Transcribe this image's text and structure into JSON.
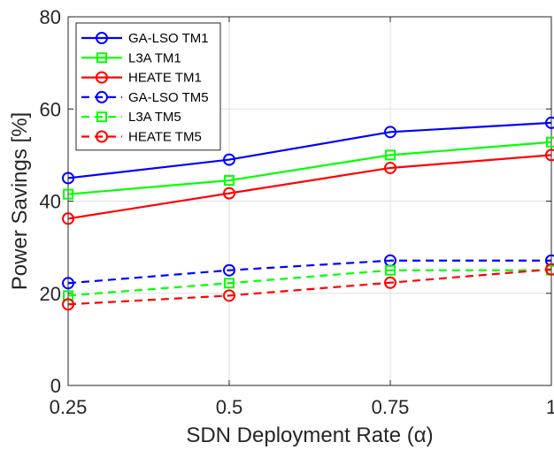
{
  "chart_data": {
    "type": "line",
    "xlabel": "SDN Deployment Rate (α)",
    "ylabel": "Power Savings [%]",
    "x": [
      0.25,
      0.5,
      0.75,
      1
    ],
    "x_tick_labels": [
      "0.25",
      "0.5",
      "0.75",
      "1"
    ],
    "y_ticks": [
      0,
      20,
      40,
      60,
      80
    ],
    "xlim": [
      0.25,
      1
    ],
    "ylim": [
      0,
      80
    ],
    "grid": true,
    "legend_position": "top-left",
    "series": [
      {
        "name": "GA-LSO TM1",
        "values": [
          45,
          49,
          55,
          57
        ],
        "color": "#0000ff",
        "marker": "circle",
        "dashed": false
      },
      {
        "name": "L3A TM1",
        "values": [
          41.5,
          44.5,
          50,
          52.8
        ],
        "color": "#00ff00",
        "marker": "square",
        "dashed": false
      },
      {
        "name": "HEATE TM1",
        "values": [
          36.2,
          41.7,
          47.2,
          50
        ],
        "color": "#ff0000",
        "marker": "circle",
        "dashed": false
      },
      {
        "name": "GA-LSO TM5",
        "values": [
          22.2,
          25,
          27.1,
          27.1
        ],
        "color": "#0000ff",
        "marker": "circle",
        "dashed": true
      },
      {
        "name": "L3A TM5",
        "values": [
          19.5,
          22.2,
          25,
          25
        ],
        "color": "#00ff00",
        "marker": "square",
        "dashed": true
      },
      {
        "name": "HEATE TM5",
        "values": [
          17.6,
          19.5,
          22.3,
          25.2
        ],
        "color": "#ff0000",
        "marker": "circle",
        "dashed": true
      }
    ]
  }
}
